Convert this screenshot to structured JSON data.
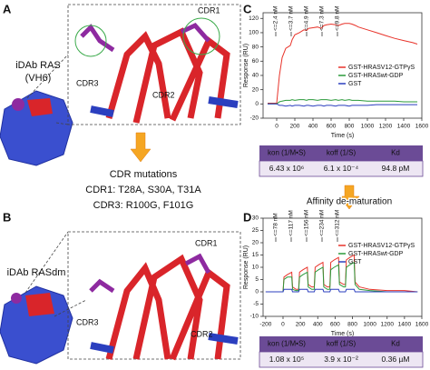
{
  "figure": {
    "panel_labels": [
      "A",
      "B",
      "C",
      "D"
    ],
    "a": {
      "title": "iDAb RAS",
      "subtitle": "(VH6)",
      "cdr": [
        "CDR1",
        "CDR3",
        "CDR2"
      ]
    },
    "mutations": {
      "title": "CDR mutations",
      "lines": [
        "CDR1: T28A, S30A, T31A",
        "CDR3: R100G, F101G"
      ]
    },
    "b": {
      "title": "iDAb RASdm",
      "cdr": [
        "CDR1",
        "CDR3",
        "CDR2"
      ]
    },
    "arrow_label": "Affinity de-maturation"
  },
  "chart_data": [
    {
      "type": "line",
      "xlabel": "Time (s)",
      "ylabel": "Response (RU)",
      "annotations": [
        "<=2.4 nM",
        "<=3.7 nM",
        "<=4.9 nM",
        "<=7.3 nM",
        "<=9.8 nM"
      ],
      "x": [
        -100,
        0,
        30,
        60,
        100,
        150,
        170,
        200,
        250,
        300,
        330,
        350,
        400,
        450,
        490,
        520,
        550,
        600,
        650,
        680,
        720,
        750,
        800,
        830,
        870,
        900,
        1000,
        1100,
        1200,
        1300,
        1400,
        1500,
        1550
      ],
      "series": [
        {
          "name": "GST-HRASV12-GTPγS",
          "color": "#e8332a",
          "values": [
            1,
            1,
            40,
            65,
            78,
            82,
            90,
            97,
            100,
            104,
            103,
            106,
            107,
            108,
            106,
            110,
            111,
            112,
            111,
            110,
            112,
            113,
            113,
            112,
            110,
            108,
            104,
            100,
            96,
            92,
            89,
            86,
            84
          ]
        },
        {
          "name": "GST-HRASwt-GDP",
          "color": "#2a9a3a",
          "values": [
            0,
            0,
            3,
            4,
            5,
            5,
            6,
            5,
            6,
            6,
            5,
            6,
            6,
            5,
            6,
            6,
            6,
            5,
            6,
            5,
            6,
            5,
            6,
            5,
            5,
            5,
            4,
            4,
            4,
            4,
            3,
            3,
            3
          ]
        },
        {
          "name": "GST",
          "color": "#2b3fbf",
          "values": [
            0,
            0,
            -2,
            -2,
            -3,
            -2,
            -3,
            -2,
            -2,
            -3,
            -2,
            -2,
            -3,
            -2,
            -2,
            -3,
            -2,
            -2,
            -3,
            -2,
            -2,
            -2,
            -3,
            -2,
            -2,
            -2,
            -2,
            -1,
            -1,
            -1,
            -1,
            -1,
            -1
          ]
        }
      ],
      "xlim": [
        -150,
        1600
      ],
      "xticks": [
        0,
        200,
        400,
        600,
        800,
        1000,
        1200,
        1400,
        1600
      ],
      "ylim": [
        -20,
        128
      ],
      "yticks": [
        -20,
        0,
        20,
        40,
        60,
        80,
        100,
        120
      ]
    },
    {
      "type": "line",
      "xlabel": "Time (s)",
      "ylabel": "Response (RU)",
      "annotations": [
        "<=78 nM",
        "<=117 nM",
        "<=156 nM",
        "<=234 nM",
        "<=312 nM"
      ],
      "x": [
        -200,
        0,
        10,
        50,
        100,
        110,
        150,
        180,
        190,
        230,
        280,
        290,
        330,
        360,
        370,
        410,
        460,
        470,
        510,
        540,
        550,
        590,
        640,
        650,
        700,
        720,
        730,
        770,
        820,
        830,
        880,
        1000,
        1200,
        1400,
        1550
      ],
      "series": [
        {
          "name": "GST-HRASV12-GTPγS",
          "color": "#e8332a",
          "values": [
            0,
            0,
            6,
            7,
            8,
            2,
            1,
            1,
            8,
            9,
            10,
            3,
            2,
            2,
            10,
            11,
            12,
            3,
            2,
            2,
            12,
            13,
            14,
            4,
            3,
            3,
            13,
            14,
            15,
            4,
            2,
            1,
            0.5,
            0.5,
            0
          ]
        },
        {
          "name": "GST-HRASwt-GDP",
          "color": "#2a9a3a",
          "values": [
            0,
            0,
            5,
            6,
            6,
            1,
            0.5,
            0.5,
            6,
            7,
            8,
            2,
            1,
            1,
            8,
            9,
            10,
            2,
            1,
            1,
            9,
            10,
            11,
            3,
            2,
            2,
            10,
            11,
            12,
            3,
            1,
            0.5,
            0,
            0,
            0
          ]
        },
        {
          "name": "GST",
          "color": "#2b3fbf",
          "values": [
            0,
            0,
            1,
            1,
            1,
            0,
            0,
            0,
            1,
            1,
            1,
            0,
            0,
            0,
            1,
            1,
            1,
            0,
            0,
            0,
            1,
            1,
            1,
            0,
            0,
            0,
            1,
            1,
            1,
            0,
            0,
            0,
            0,
            0,
            0
          ]
        }
      ],
      "xlim": [
        -230,
        1600
      ],
      "xticks": [
        -200,
        0,
        200,
        400,
        600,
        800,
        1000,
        1200,
        1400,
        1600
      ],
      "ylim": [
        -10,
        30
      ],
      "yticks": [
        -10,
        -5,
        0,
        5,
        10,
        15,
        20,
        25,
        30
      ]
    }
  ],
  "tables": [
    {
      "header": [
        "kon (1/M•S)",
        "koff (1/S)",
        "Kd"
      ],
      "row": [
        "6.43 x 10⁶",
        "6.1 x 10⁻⁴",
        "94.8 pM"
      ]
    },
    {
      "header": [
        "kon (1/M•S)",
        "koff (1/S)",
        "Kd"
      ],
      "row": [
        "1.08 x 10⁵",
        "3.9 x 10⁻²",
        "0.36 µM"
      ]
    }
  ]
}
